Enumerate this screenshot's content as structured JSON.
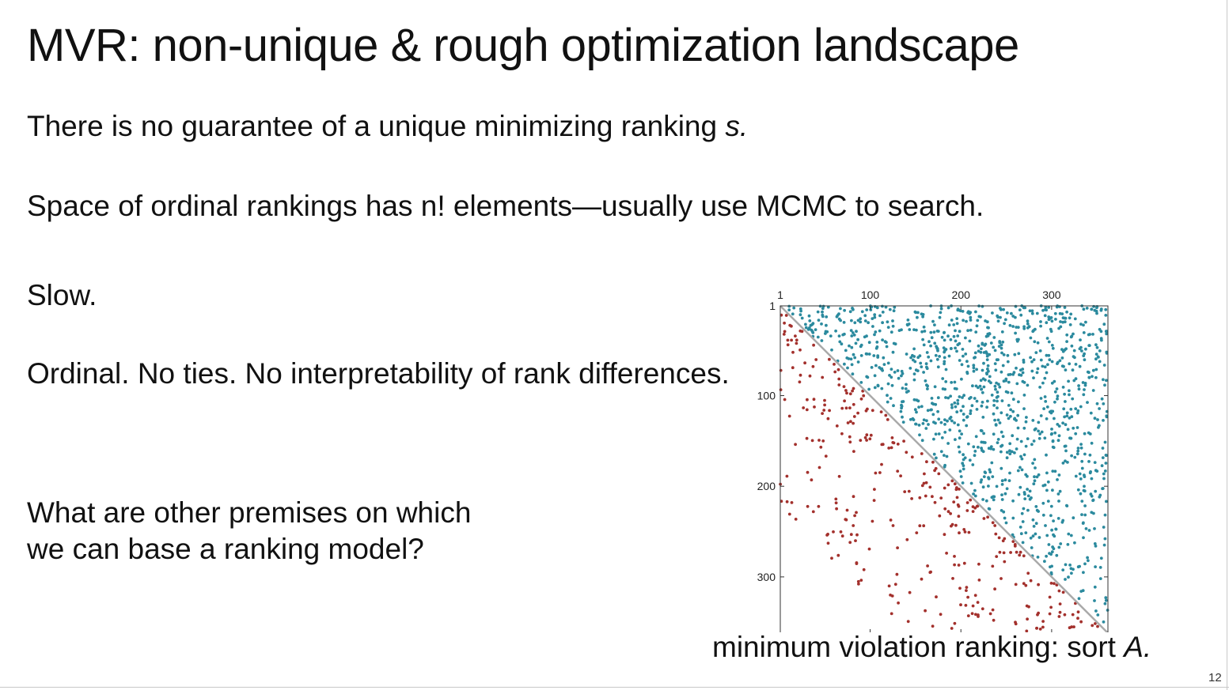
{
  "slide": {
    "title": "MVR: non-unique & rough optimization landscape",
    "line1": {
      "text": "There is no guarantee of a unique minimizing ranking ",
      "emphasis": "s."
    },
    "line2": "Space of ordinal rankings has n! elements—usually use MCMC to search.",
    "line3": "Slow.",
    "line4": "Ordinal. No ties. No interpretability of rank differences.",
    "question": [
      "What are other premises on which",
      "we can base a ranking model?"
    ],
    "caption": {
      "text": "minimum violation ranking: sort ",
      "emphasis": "A."
    },
    "page_number": "12"
  },
  "chart_data": {
    "type": "scatter",
    "description_matrix": "sorted adjacency matrix A (sparsity pattern)",
    "n": 362,
    "x_ticks": [
      "1",
      "100",
      "200",
      "300"
    ],
    "y_ticks": [
      "1",
      "100",
      "200",
      "300"
    ],
    "x_tick_values": [
      1,
      100,
      200,
      300
    ],
    "y_tick_values": [
      1,
      100,
      200,
      300
    ],
    "xlim": [
      1,
      362
    ],
    "ylim": [
      1,
      362
    ],
    "x_axis_position": "top",
    "y_reversed": true,
    "diagonal_line": true,
    "series": [
      {
        "label": "upper",
        "color": "#2b8a9e",
        "region": "above diagonal",
        "approx_count": 1150
      },
      {
        "label": "lower",
        "color": "#a3302c",
        "region": "below diagonal",
        "approx_count": 320
      }
    ],
    "diagonal_color": "#aaaaaa"
  }
}
